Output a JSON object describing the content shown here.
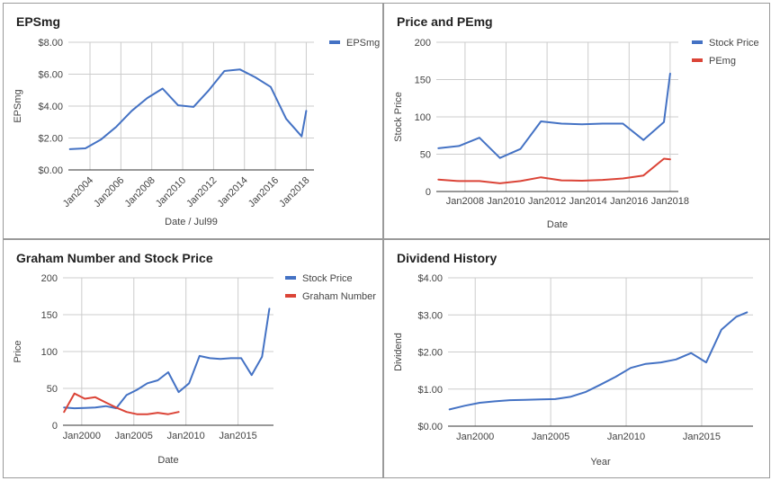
{
  "colors": {
    "blue": "#4472C4",
    "red": "#DB4437",
    "grid": "#cccccc",
    "axis": "#333333",
    "tick": "#444444"
  },
  "chart_data": [
    {
      "id": "eps",
      "type": "line",
      "title": "EPSmg",
      "xlabel": "Date / Jul99",
      "ylabel": "EPSmg",
      "xlim": [
        2002.6,
        2018.5
      ],
      "ylim": [
        0,
        8
      ],
      "yticks": [
        0,
        2,
        4,
        6,
        8
      ],
      "ytick_labels": [
        "$0.00",
        "$2.00",
        "$4.00",
        "$6.00",
        "$8.00"
      ],
      "xticks": [
        2004,
        2006,
        2008,
        2010,
        2012,
        2014,
        2016,
        2018
      ],
      "xtick_labels": [
        "Jan2004",
        "Jan2006",
        "Jan2008",
        "Jan2010",
        "Jan2012",
        "Jan2014",
        "Jan2016",
        "Jan2018"
      ],
      "xtick_rotate": true,
      "legend": "top-right",
      "series": [
        {
          "name": "EPSmg",
          "color": "#4472C4",
          "x": [
            2002.7,
            2003.7,
            2004.7,
            2005.7,
            2006.7,
            2007.7,
            2008.7,
            2009.7,
            2010.7,
            2011.7,
            2012.7,
            2013.7,
            2014.7,
            2015.7,
            2016.7,
            2017.7,
            2018.0
          ],
          "y": [
            1.3,
            1.35,
            1.9,
            2.7,
            3.7,
            4.5,
            5.1,
            4.05,
            3.95,
            5.0,
            6.2,
            6.3,
            5.8,
            5.2,
            3.2,
            2.1,
            3.7
          ]
        }
      ]
    },
    {
      "id": "pe",
      "type": "line",
      "title": "Price and PEmg",
      "xlabel": "Date",
      "ylabel": "Stock Price",
      "xlim": [
        2006.6,
        2018.4
      ],
      "ylim": [
        0,
        200
      ],
      "yticks": [
        0,
        50,
        100,
        150,
        200
      ],
      "ytick_labels": [
        "0",
        "50",
        "100",
        "150",
        "200"
      ],
      "xticks": [
        2008,
        2010,
        2012,
        2014,
        2016,
        2018
      ],
      "xtick_labels": [
        "Jan2008",
        "Jan2010",
        "Jan2012",
        "Jan2014",
        "Jan2016",
        "Jan2018"
      ],
      "xtick_rotate": false,
      "legend": "top-right",
      "series": [
        {
          "name": "Stock Price",
          "color": "#4472C4",
          "x": [
            2006.7,
            2007.7,
            2008.7,
            2009.7,
            2010.7,
            2011.7,
            2012.7,
            2013.7,
            2014.7,
            2015.7,
            2016.7,
            2017.7,
            2018.0
          ],
          "y": [
            58,
            61,
            72,
            45,
            57,
            94,
            91,
            90,
            91,
            91,
            69,
            93,
            158
          ]
        },
        {
          "name": "PEmg",
          "color": "#DB4437",
          "x": [
            2006.7,
            2007.7,
            2008.7,
            2009.7,
            2010.7,
            2011.7,
            2012.7,
            2013.7,
            2014.7,
            2015.7,
            2016.7,
            2017.7,
            2018.0
          ],
          "y": [
            16,
            14,
            14,
            11,
            14,
            19,
            15,
            14.5,
            15.5,
            17.5,
            21.5,
            44,
            43
          ]
        }
      ]
    },
    {
      "id": "graham",
      "type": "line",
      "title": "Graham Number and Stock Price",
      "xlabel": "Date",
      "ylabel": "Price",
      "xlim": [
        1998.2,
        2018.4
      ],
      "ylim": [
        0,
        200
      ],
      "yticks": [
        0,
        50,
        100,
        150,
        200
      ],
      "ytick_labels": [
        "0",
        "50",
        "100",
        "150",
        "200"
      ],
      "xticks": [
        2000,
        2005,
        2010,
        2015
      ],
      "xtick_labels": [
        "Jan2000",
        "Jan2005",
        "Jan2010",
        "Jan2015"
      ],
      "xtick_rotate": false,
      "legend": "top-right",
      "series": [
        {
          "name": "Stock Price",
          "color": "#4472C4",
          "x": [
            1998.3,
            1999.3,
            2000.3,
            2001.3,
            2002.3,
            2003.3,
            2004.3,
            2005.3,
            2006.3,
            2007.3,
            2008.3,
            2009.3,
            2010.3,
            2011.3,
            2012.3,
            2013.3,
            2014.3,
            2015.3,
            2016.3,
            2017.3,
            2018.0
          ],
          "y": [
            24,
            23,
            23.5,
            24,
            26,
            23,
            41,
            48,
            57,
            61,
            72,
            45,
            57,
            94,
            91,
            90,
            91,
            91,
            68,
            93,
            158
          ]
        },
        {
          "name": "Graham Number",
          "color": "#DB4437",
          "x": [
            1998.3,
            1999.3,
            2000.3,
            2001.3,
            2002.3,
            2003.3,
            2004.3,
            2005.3,
            2006.3,
            2007.3,
            2008.3,
            2009.3
          ],
          "y": [
            18,
            43,
            36,
            38,
            31,
            24,
            18,
            15,
            15,
            17,
            15,
            18
          ]
        }
      ]
    },
    {
      "id": "dividend",
      "type": "line",
      "title": "Dividend History",
      "xlabel": "Year",
      "ylabel": "Dividend",
      "xlim": [
        1998.2,
        2018.4
      ],
      "ylim": [
        0,
        4
      ],
      "yticks": [
        0,
        1,
        2,
        3,
        4
      ],
      "ytick_labels": [
        "$0.00",
        "$1.00",
        "$2.00",
        "$3.00",
        "$4.00"
      ],
      "xticks": [
        2000,
        2005,
        2010,
        2015
      ],
      "xtick_labels": [
        "Jan2000",
        "Jan2005",
        "Jan2010",
        "Jan2015"
      ],
      "xtick_rotate": false,
      "legend": "none",
      "series": [
        {
          "name": "Dividend",
          "color": "#4472C4",
          "x": [
            1998.3,
            1999.3,
            2000.3,
            2001.3,
            2002.3,
            2003.3,
            2004.3,
            2005.3,
            2006.3,
            2007.3,
            2008.3,
            2009.3,
            2010.3,
            2011.3,
            2012.3,
            2013.3,
            2014.3,
            2015.3,
            2016.3,
            2017.3,
            2018.0
          ],
          "y": [
            0.45,
            0.55,
            0.63,
            0.67,
            0.7,
            0.71,
            0.72,
            0.73,
            0.79,
            0.92,
            1.12,
            1.33,
            1.57,
            1.68,
            1.72,
            1.8,
            1.97,
            1.72,
            2.6,
            2.95,
            3.07
          ]
        }
      ]
    }
  ]
}
